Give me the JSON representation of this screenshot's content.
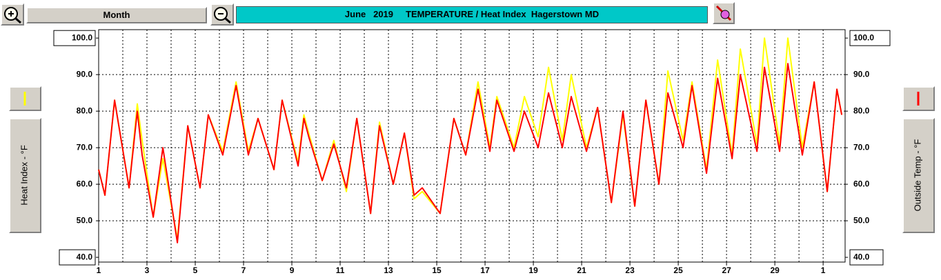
{
  "toolbar": {
    "period": "Month"
  },
  "chart_data": {
    "type": "line",
    "title": "June   2019     TEMPERATURE / Heat Index  Hagerstown MD",
    "ylabel": "Heat Index - °F",
    "y2label": "Outside Temp - °F",
    "x": [
      1,
      1.26,
      1.66,
      2.26,
      2.6,
      2.8,
      3.26,
      3.66,
      4.26,
      4.69,
      5.2,
      5.54,
      6.14,
      6.69,
      7.2,
      7.6,
      8.26,
      8.6,
      9.26,
      9.5,
      9.7,
      10.26,
      10.74,
      11.26,
      11.69,
      12.26,
      12.63,
      13.2,
      13.66,
      14.06,
      14.4,
      15.14,
      15.71,
      16.2,
      16.71,
      17.2,
      17.49,
      18.2,
      18.63,
      19.2,
      19.63,
      20.2,
      20.57,
      21.2,
      21.66,
      22.23,
      22.71,
      23.2,
      23.66,
      24.2,
      24.57,
      25.2,
      25.57,
      26.17,
      26.63,
      27.23,
      27.57,
      28.26,
      28.57,
      29.2,
      29.54,
      30.14,
      30.63,
      31.17,
      31.57,
      31.77
    ],
    "series": [
      {
        "color": "#ffff00",
        "values": [
          64,
          57,
          83,
          59,
          82,
          72,
          51,
          67,
          45,
          76,
          59,
          79,
          69,
          88,
          69,
          78,
          64,
          83,
          66,
          79,
          74,
          61,
          72,
          58,
          78,
          52,
          77,
          60,
          74,
          56,
          58,
          52,
          78,
          68,
          88,
          70,
          84,
          70,
          84,
          73,
          92,
          72,
          90,
          70,
          81,
          55,
          79,
          54,
          83,
          60,
          91,
          72,
          88,
          64,
          94,
          68,
          97,
          71,
          100,
          71,
          100,
          70,
          88,
          58,
          86,
          79
        ]
      },
      {
        "color": "#ff0000",
        "axis": "y2",
        "values": [
          64,
          57,
          83,
          59,
          80,
          68,
          51,
          70,
          44,
          76,
          59,
          79,
          68,
          87,
          68,
          78,
          64,
          83,
          65,
          78,
          73,
          61,
          71,
          59,
          78,
          52,
          76,
          60,
          74,
          57,
          59,
          52,
          78,
          68,
          86,
          69,
          83,
          69,
          80,
          70,
          85,
          70,
          84,
          69,
          81,
          55,
          80,
          54,
          83,
          60,
          85,
          70,
          87,
          63,
          89,
          67,
          90,
          69,
          92,
          69,
          93,
          68,
          88,
          58,
          86,
          79
        ]
      }
    ],
    "xlim": [
      1,
      31.91
    ],
    "xticks": [
      1,
      3,
      5,
      7,
      9,
      11,
      13,
      15,
      17,
      19,
      21,
      23,
      25,
      27,
      29,
      {
        "value": 31,
        "label": "1"
      }
    ],
    "xgrid_minor": [
      2,
      4,
      6,
      8,
      10,
      12,
      14,
      16,
      18,
      20,
      22,
      24,
      26,
      28,
      30
    ],
    "ylim": [
      38.7,
      102.3
    ],
    "yticks": [
      {
        "value": 40,
        "label": "40.0"
      },
      {
        "value": 50,
        "label": "50.0"
      },
      {
        "value": 60,
        "label": "60.0"
      },
      {
        "value": 70,
        "label": "70.0"
      },
      {
        "value": 80,
        "label": "80.0"
      },
      {
        "value": 90,
        "label": "90.0"
      },
      {
        "value": 100,
        "label": "100.0"
      }
    ],
    "y2lim": [
      38.7,
      102.3
    ],
    "y2ticks": [
      {
        "value": 40,
        "label": "40.0"
      },
      {
        "value": 50,
        "label": "50.0"
      },
      {
        "value": 60,
        "label": "60.0"
      },
      {
        "value": 70,
        "label": "70.0"
      },
      {
        "value": 80,
        "label": "80.0"
      },
      {
        "value": 90,
        "label": "90.0"
      },
      {
        "value": 100,
        "label": "100.0"
      }
    ],
    "grid": true
  }
}
